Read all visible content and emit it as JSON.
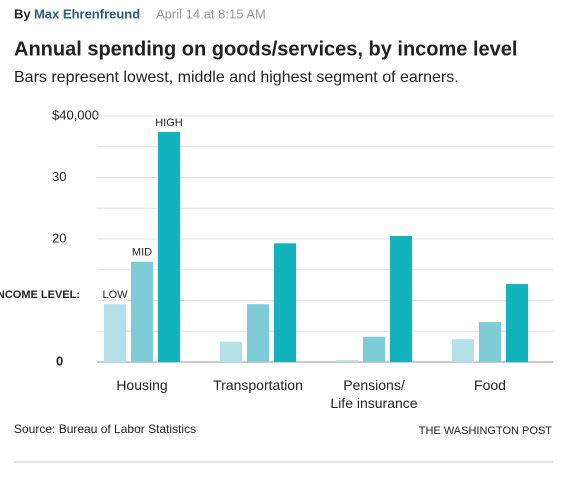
{
  "byline": {
    "prefix": "By",
    "author": "Max Ehrenfreund",
    "date": "April 14 at 8:15 AM"
  },
  "chart_data": {
    "type": "bar",
    "title": "Annual spending on goods/services, by income level",
    "subtitle": "Bars represent lowest, middle and highest segment of earners.",
    "legend_title": "INCOME LEVEL:",
    "categories": [
      "Housing",
      "Transportation",
      "Pensions/\nLife insurance",
      "Food"
    ],
    "series": [
      {
        "name": "LOW",
        "color": "#b4e1e7",
        "values": [
          9400,
          3300,
          300,
          3700
        ]
      },
      {
        "name": "MID",
        "color": "#7ecdd6",
        "values": [
          16300,
          9400,
          4100,
          6500
        ]
      },
      {
        "name": "HIGH",
        "color": "#0fb4bd",
        "values": [
          37400,
          19300,
          20500,
          12700
        ]
      }
    ],
    "ylim": [
      0,
      40000
    ],
    "yticks": [
      0,
      {
        "value": 20000,
        "label": "20"
      },
      {
        "value": 30000,
        "label": "30"
      },
      {
        "value": 40000,
        "label": "$40,000"
      }
    ],
    "gridlines": [
      5000,
      10000,
      15000,
      20000,
      25000,
      30000,
      35000,
      40000
    ],
    "grid": true,
    "source": "Source: Bureau of Labor Statistics",
    "credit": "THE WASHINGTON POST"
  }
}
